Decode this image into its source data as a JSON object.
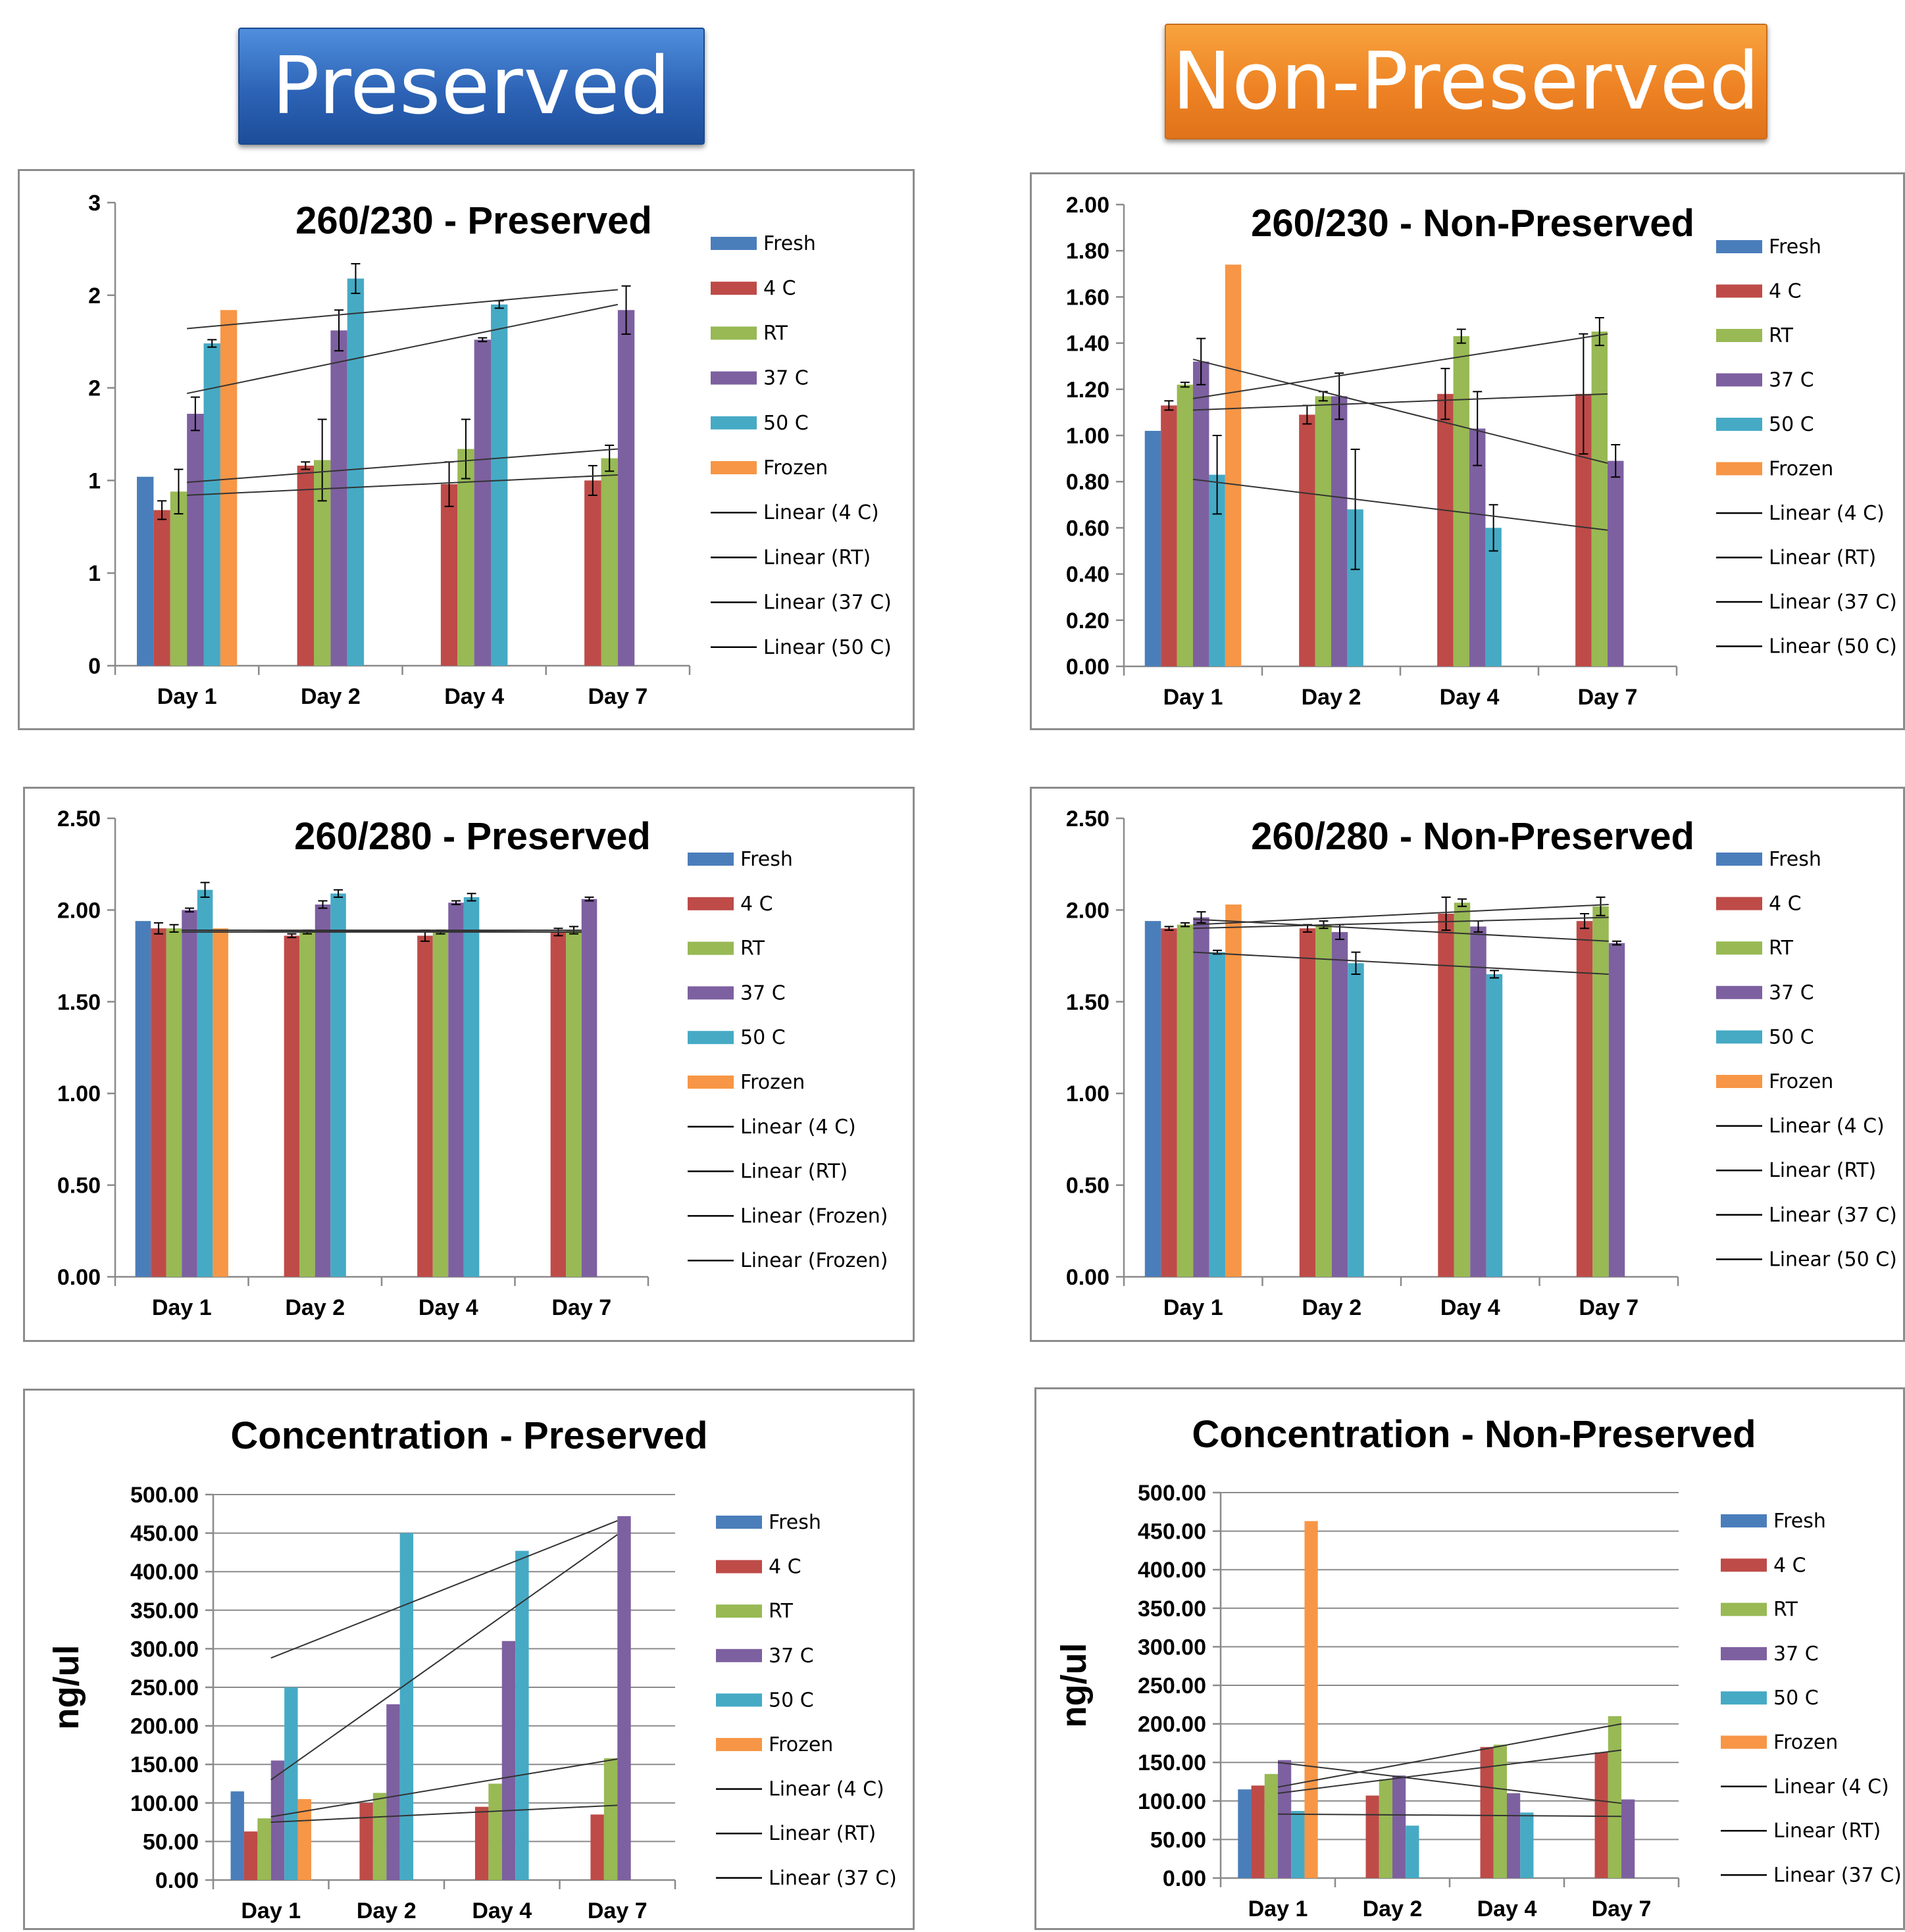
{
  "banners": {
    "preserved": "Preserved",
    "non_preserved": "Non-Preserved"
  },
  "colors": {
    "Fresh": "#4a7ebb",
    "4 C": "#be4b48",
    "RT": "#98b954",
    "37 C": "#7d60a0",
    "50 C": "#46aac5",
    "Frozen": "#f79646"
  },
  "chart_data": [
    {
      "id": "p230",
      "type": "bar",
      "title": "260/230 - Preserved",
      "ylabel": "",
      "ylim": [
        0,
        2.5
      ],
      "yticks": [
        0,
        0.5,
        1,
        1.5,
        2,
        2.5
      ],
      "tick_decimals": 0,
      "categories": [
        "Day 1",
        "Day 2",
        "Day 4",
        "Day 7"
      ],
      "series": [
        {
          "name": "Fresh",
          "values": [
            1.02,
            null,
            null,
            null
          ],
          "errors": [
            0,
            0,
            0,
            0
          ]
        },
        {
          "name": "4 C",
          "values": [
            0.84,
            1.08,
            0.98,
            1.0
          ],
          "errors": [
            0.05,
            0.02,
            0.12,
            0.08
          ]
        },
        {
          "name": "RT",
          "values": [
            0.94,
            1.11,
            1.17,
            1.12
          ],
          "errors": [
            0.12,
            0.22,
            0.16,
            0.07
          ]
        },
        {
          "name": "37 C",
          "values": [
            1.36,
            1.81,
            1.76,
            1.92
          ],
          "errors": [
            0.09,
            0.11,
            0.01,
            0.13
          ]
        },
        {
          "name": "50 C",
          "values": [
            1.74,
            2.09,
            1.95,
            null
          ],
          "errors": [
            0.02,
            0.08,
            0.02,
            0
          ]
        },
        {
          "name": "Frozen",
          "values": [
            1.92,
            null,
            null,
            null
          ],
          "errors": [
            0,
            0,
            0,
            0
          ]
        }
      ],
      "trendlines": [
        {
          "name": "Linear (4 C)",
          "start": 0.92,
          "end": 1.03
        },
        {
          "name": "Linear (RT)",
          "start": 0.99,
          "end": 1.17
        },
        {
          "name": "Linear (37 C)",
          "start": 1.47,
          "end": 1.95
        },
        {
          "name": "Linear (50 C)",
          "start": 1.82,
          "end": 2.03
        }
      ]
    },
    {
      "id": "n230",
      "type": "bar",
      "title": "260/230 - Non-Preserved",
      "ylabel": "",
      "ylim": [
        0,
        2.0
      ],
      "yticks": [
        0,
        0.2,
        0.4,
        0.6,
        0.8,
        1.0,
        1.2,
        1.4,
        1.6,
        1.8,
        2.0
      ],
      "tick_decimals": 2,
      "categories": [
        "Day 1",
        "Day 2",
        "Day 4",
        "Day 7"
      ],
      "series": [
        {
          "name": "Fresh",
          "values": [
            1.02,
            null,
            null,
            null
          ],
          "errors": [
            0,
            0,
            0,
            0
          ]
        },
        {
          "name": "4 C",
          "values": [
            1.13,
            1.09,
            1.18,
            1.18
          ],
          "errors": [
            0.02,
            0.04,
            0.11,
            0.26
          ]
        },
        {
          "name": "RT",
          "values": [
            1.22,
            1.17,
            1.43,
            1.45
          ],
          "errors": [
            0.01,
            0.02,
            0.03,
            0.06
          ]
        },
        {
          "name": "37 C",
          "values": [
            1.32,
            1.17,
            1.03,
            0.89
          ],
          "errors": [
            0.1,
            0.1,
            0.16,
            0.07
          ]
        },
        {
          "name": "50 C",
          "values": [
            0.83,
            0.68,
            0.6,
            null
          ],
          "errors": [
            0.17,
            0.26,
            0.1,
            0
          ]
        },
        {
          "name": "Frozen",
          "values": [
            1.74,
            null,
            null,
            null
          ],
          "errors": [
            0,
            0,
            0,
            0
          ]
        }
      ],
      "trendlines": [
        {
          "name": "Linear (4 C)",
          "start": 1.11,
          "end": 1.18
        },
        {
          "name": "Linear (RT)",
          "start": 1.16,
          "end": 1.44
        },
        {
          "name": "Linear (37 C)",
          "start": 1.33,
          "end": 0.88
        },
        {
          "name": "Linear (50 C)",
          "start": 0.81,
          "end": 0.59
        }
      ]
    },
    {
      "id": "p280",
      "type": "bar",
      "title": "260/280 - Preserved",
      "ylabel": "",
      "ylim": [
        0,
        2.5
      ],
      "yticks": [
        0,
        0.5,
        1.0,
        1.5,
        2.0,
        2.5
      ],
      "tick_decimals": 2,
      "categories": [
        "Day 1",
        "Day 2",
        "Day 4",
        "Day 7"
      ],
      "series": [
        {
          "name": "Fresh",
          "values": [
            1.94,
            null,
            null,
            null
          ],
          "errors": [
            0,
            0,
            0,
            0
          ]
        },
        {
          "name": "4 C",
          "values": [
            1.9,
            1.86,
            1.86,
            1.88
          ],
          "errors": [
            0.03,
            0.01,
            0.03,
            0.02
          ]
        },
        {
          "name": "RT",
          "values": [
            1.9,
            1.88,
            1.88,
            1.89
          ],
          "errors": [
            0.02,
            0.01,
            0.01,
            0.02
          ]
        },
        {
          "name": "37 C",
          "values": [
            2.0,
            2.03,
            2.04,
            2.06
          ],
          "errors": [
            0.01,
            0.02,
            0.01,
            0.01
          ]
        },
        {
          "name": "50 C",
          "values": [
            2.11,
            2.09,
            2.07,
            null
          ],
          "errors": [
            0.04,
            0.02,
            0.02,
            0
          ]
        },
        {
          "name": "Frozen",
          "values": [
            1.9,
            null,
            null,
            null
          ],
          "errors": [
            0,
            0,
            0,
            0
          ]
        }
      ],
      "trendlines": [
        {
          "name": "Linear (4 C)",
          "start": 1.89,
          "end": 1.88
        },
        {
          "name": "Linear (RT)",
          "start": 1.89,
          "end": 1.89
        },
        {
          "name": "Linear (Frozen)",
          "start": 1.88,
          "end": 1.88
        },
        {
          "name": "Linear (Frozen)",
          "start": 1.89,
          "end": 1.88
        }
      ]
    },
    {
      "id": "n280",
      "type": "bar",
      "title": "260/280 - Non-Preserved",
      "ylabel": "",
      "ylim": [
        0,
        2.5
      ],
      "yticks": [
        0,
        0.5,
        1.0,
        1.5,
        2.0,
        2.5
      ],
      "tick_decimals": 2,
      "categories": [
        "Day 1",
        "Day 2",
        "Day 4",
        "Day 7"
      ],
      "series": [
        {
          "name": "Fresh",
          "values": [
            1.94,
            null,
            null,
            null
          ],
          "errors": [
            0,
            0,
            0,
            0
          ]
        },
        {
          "name": "4 C",
          "values": [
            1.9,
            1.9,
            1.98,
            1.94
          ],
          "errors": [
            0.01,
            0.02,
            0.09,
            0.04
          ]
        },
        {
          "name": "RT",
          "values": [
            1.92,
            1.92,
            2.04,
            2.02
          ],
          "errors": [
            0.01,
            0.02,
            0.02,
            0.05
          ]
        },
        {
          "name": "37 C",
          "values": [
            1.96,
            1.88,
            1.91,
            1.82
          ],
          "errors": [
            0.03,
            0.04,
            0.03,
            0.01
          ]
        },
        {
          "name": "50 C",
          "values": [
            1.77,
            1.71,
            1.65,
            null
          ],
          "errors": [
            0.01,
            0.06,
            0.02,
            0
          ]
        },
        {
          "name": "Frozen",
          "values": [
            2.03,
            null,
            null,
            null
          ],
          "errors": [
            0,
            0,
            0,
            0
          ]
        }
      ],
      "trendlines": [
        {
          "name": "Linear (4 C)",
          "start": 1.9,
          "end": 1.96
        },
        {
          "name": "Linear (RT)",
          "start": 1.92,
          "end": 2.03
        },
        {
          "name": "Linear (37 C)",
          "start": 1.95,
          "end": 1.83
        },
        {
          "name": "Linear (50 C)",
          "start": 1.77,
          "end": 1.65
        }
      ]
    },
    {
      "id": "pconc",
      "type": "bar",
      "title": "Concentration - Preserved",
      "ylabel": "ng/ul",
      "ylim": [
        0,
        500
      ],
      "yticks": [
        0,
        50,
        100,
        150,
        200,
        250,
        300,
        350,
        400,
        450,
        500
      ],
      "tick_decimals": 2,
      "categories": [
        "Day 1",
        "Day 2",
        "Day 4",
        "Day 7"
      ],
      "series": [
        {
          "name": "Fresh",
          "values": [
            115,
            null,
            null,
            null
          ],
          "errors": [
            0,
            0,
            0,
            0
          ]
        },
        {
          "name": "4 C",
          "values": [
            63,
            100,
            95,
            85
          ],
          "errors": [
            0,
            0,
            0,
            0
          ]
        },
        {
          "name": "RT",
          "values": [
            80,
            113,
            125,
            158
          ],
          "errors": [
            0,
            0,
            0,
            0
          ]
        },
        {
          "name": "37 C",
          "values": [
            155,
            228,
            310,
            472
          ],
          "errors": [
            0,
            0,
            0,
            0
          ]
        },
        {
          "name": "50 C",
          "values": [
            250,
            450,
            427,
            null
          ],
          "errors": [
            0,
            0,
            0,
            0
          ]
        },
        {
          "name": "Frozen",
          "values": [
            105,
            null,
            null,
            null
          ],
          "errors": [
            0,
            0,
            0,
            0
          ]
        }
      ],
      "trendlines": [
        {
          "name": "Linear (4 C)",
          "start": 75,
          "end": 97
        },
        {
          "name": "Linear (RT)",
          "start": 82,
          "end": 157
        },
        {
          "name": "Linear (37 C)",
          "start": 130,
          "end": 448
        },
        {
          "name": "",
          "start": 288,
          "end": 466
        }
      ]
    },
    {
      "id": "nconc",
      "type": "bar",
      "title": "Concentration - Non-Preserved",
      "ylabel": "ng/ul",
      "ylim": [
        0,
        500
      ],
      "yticks": [
        0,
        50,
        100,
        150,
        200,
        250,
        300,
        350,
        400,
        450,
        500
      ],
      "tick_decimals": 2,
      "categories": [
        "Day 1",
        "Day 2",
        "Day 4",
        "Day 7"
      ],
      "series": [
        {
          "name": "Fresh",
          "values": [
            115,
            null,
            null,
            null
          ],
          "errors": [
            0,
            0,
            0,
            0
          ]
        },
        {
          "name": "4 C",
          "values": [
            120,
            107,
            170,
            163
          ],
          "errors": [
            0,
            0,
            0,
            0
          ]
        },
        {
          "name": "RT",
          "values": [
            135,
            128,
            173,
            210
          ],
          "errors": [
            0,
            0,
            0,
            0
          ]
        },
        {
          "name": "37 C",
          "values": [
            153,
            133,
            110,
            102
          ],
          "errors": [
            0,
            0,
            0,
            0
          ]
        },
        {
          "name": "50 C",
          "values": [
            87,
            68,
            85,
            null
          ],
          "errors": [
            0,
            0,
            0,
            0
          ]
        },
        {
          "name": "Frozen",
          "values": [
            463,
            null,
            null,
            null
          ],
          "errors": [
            0,
            0,
            0,
            0
          ]
        }
      ],
      "trendlines": [
        {
          "name": "Linear (4 C)",
          "start": 110,
          "end": 166
        },
        {
          "name": "Linear (RT)",
          "start": 118,
          "end": 200
        },
        {
          "name": "Linear (37 C)",
          "start": 150,
          "end": 97
        },
        {
          "name": "",
          "start": 83,
          "end": 80
        }
      ]
    }
  ]
}
